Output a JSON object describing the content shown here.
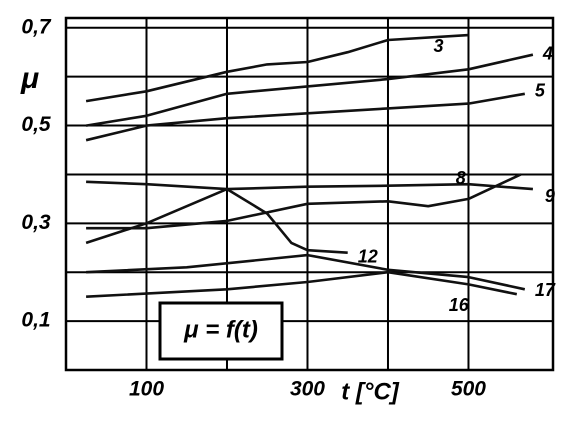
{
  "chart_data": {
    "type": "line",
    "ylabel": "μ",
    "xlabel": "t [°C]",
    "annotation": "μ = f(t)",
    "xlim": [
      0,
      605
    ],
    "ylim": [
      0,
      0.72
    ],
    "xticks": [
      100,
      {
        "value": 200,
        "label": null
      },
      300,
      {
        "value": 400,
        "label": null
      },
      500
    ],
    "yticks": [
      {
        "value": 0.1,
        "label": "0,1"
      },
      {
        "value": 0.2,
        "label": null
      },
      {
        "value": 0.3,
        "label": "0,3"
      },
      {
        "value": 0.4,
        "label": null
      },
      {
        "value": 0.5,
        "label": "0,5"
      },
      {
        "value": 0.6,
        "label": null
      },
      {
        "value": 0.7,
        "label": "0,7"
      }
    ],
    "grid": true,
    "series": [
      {
        "name": "3",
        "color": "#111111",
        "x": [
          25,
          100,
          200,
          250,
          300,
          350,
          400,
          500
        ],
        "values": [
          0.55,
          0.57,
          0.61,
          0.625,
          0.63,
          0.65,
          0.675,
          0.685
        ]
      },
      {
        "name": "4",
        "color": "#111111",
        "x": [
          25,
          100,
          200,
          300,
          400,
          500,
          580
        ],
        "values": [
          0.5,
          0.52,
          0.565,
          0.58,
          0.595,
          0.615,
          0.645
        ]
      },
      {
        "name": "5",
        "color": "#111111",
        "x": [
          25,
          100,
          200,
          300,
          400,
          500,
          570
        ],
        "values": [
          0.47,
          0.5,
          0.515,
          0.525,
          0.535,
          0.545,
          0.565
        ]
      },
      {
        "name": "9",
        "color": "#111111",
        "x": [
          25,
          100,
          200,
          300,
          400,
          500,
          580
        ],
        "values": [
          0.26,
          0.3,
          0.37,
          0.375,
          0.377,
          0.38,
          0.37
        ]
      },
      {
        "name": "8",
        "color": "#111111",
        "x": [
          25,
          100,
          200,
          300,
          400,
          450,
          500,
          565
        ],
        "values": [
          0.29,
          0.29,
          0.305,
          0.34,
          0.345,
          0.335,
          0.35,
          0.4
        ]
      },
      {
        "name": "12",
        "color": "#111111",
        "x": [
          25,
          100,
          200,
          250,
          280,
          300,
          350
        ],
        "values": [
          0.385,
          0.38,
          0.37,
          0.32,
          0.26,
          0.245,
          0.24
        ]
      },
      {
        "name": "17",
        "color": "#111111",
        "x": [
          25,
          150,
          300,
          400,
          500,
          570
        ],
        "values": [
          0.2,
          0.21,
          0.235,
          0.205,
          0.19,
          0.165
        ]
      },
      {
        "name": "16",
        "color": "#111111",
        "x": [
          25,
          200,
          300,
          400,
          500,
          560
        ],
        "values": [
          0.15,
          0.165,
          0.18,
          0.2,
          0.175,
          0.155
        ]
      }
    ]
  }
}
